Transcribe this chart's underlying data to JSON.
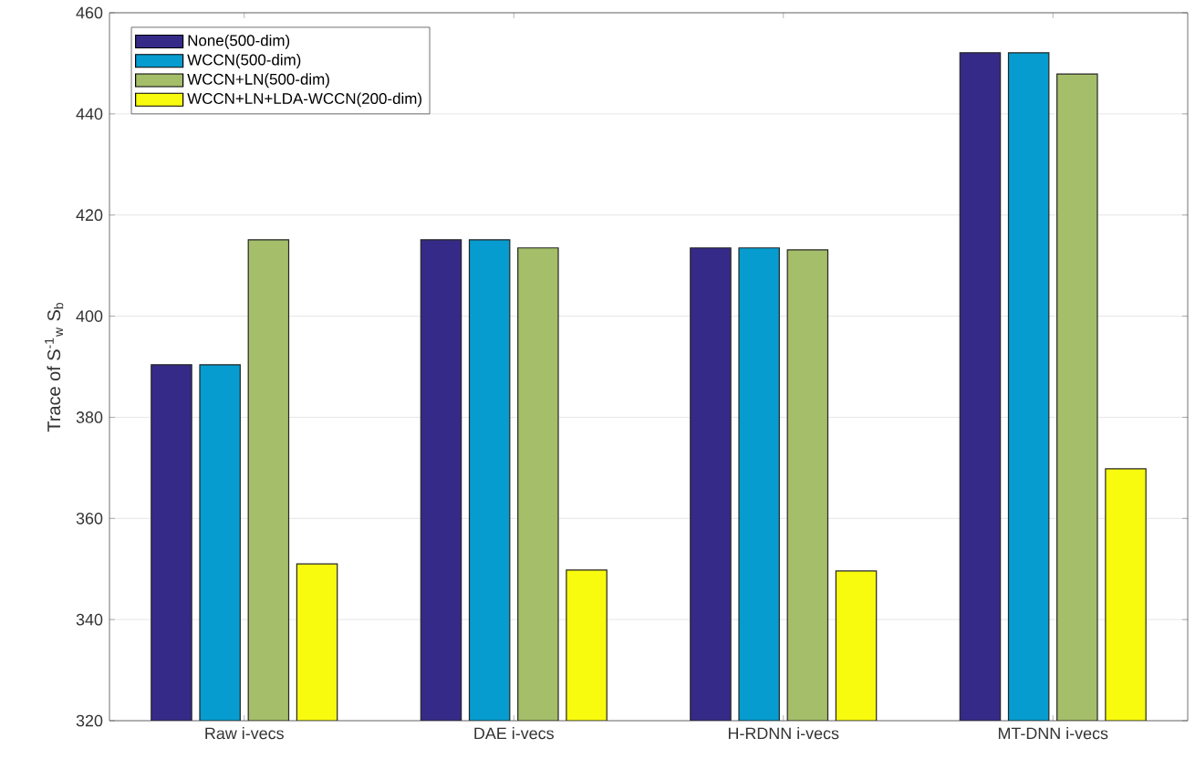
{
  "chart_data": {
    "type": "bar",
    "ylabel": "Trace of S$^{-1}$$_{w}$ S$_{b}$",
    "categories": [
      "Raw i-vecs",
      "DAE i-vecs",
      "H-RDNN i-vecs",
      "MT-DNN i-vecs"
    ],
    "series": [
      {
        "name": "None(500-dim)",
        "color": "#352a87",
        "values": [
          390.4,
          415.1,
          413.5,
          452.1
        ]
      },
      {
        "name": "WCCN(500-dim)",
        "color": "#069ccf",
        "values": [
          390.4,
          415.1,
          413.5,
          452.1
        ]
      },
      {
        "name": "WCCN+LN(500-dim)",
        "color": "#a5be6a",
        "values": [
          415.1,
          413.5,
          413.1,
          447.9
        ]
      },
      {
        "name": "WCCN+LN+LDA-WCCN(200-dim)",
        "color": "#f9fb0e",
        "values": [
          351.0,
          349.8,
          349.6,
          369.8
        ]
      }
    ],
    "ylim": [
      320,
      460
    ],
    "yticks": [
      320,
      340,
      360,
      380,
      400,
      420,
      440,
      460
    ],
    "grid": "y",
    "legend": "top left"
  }
}
